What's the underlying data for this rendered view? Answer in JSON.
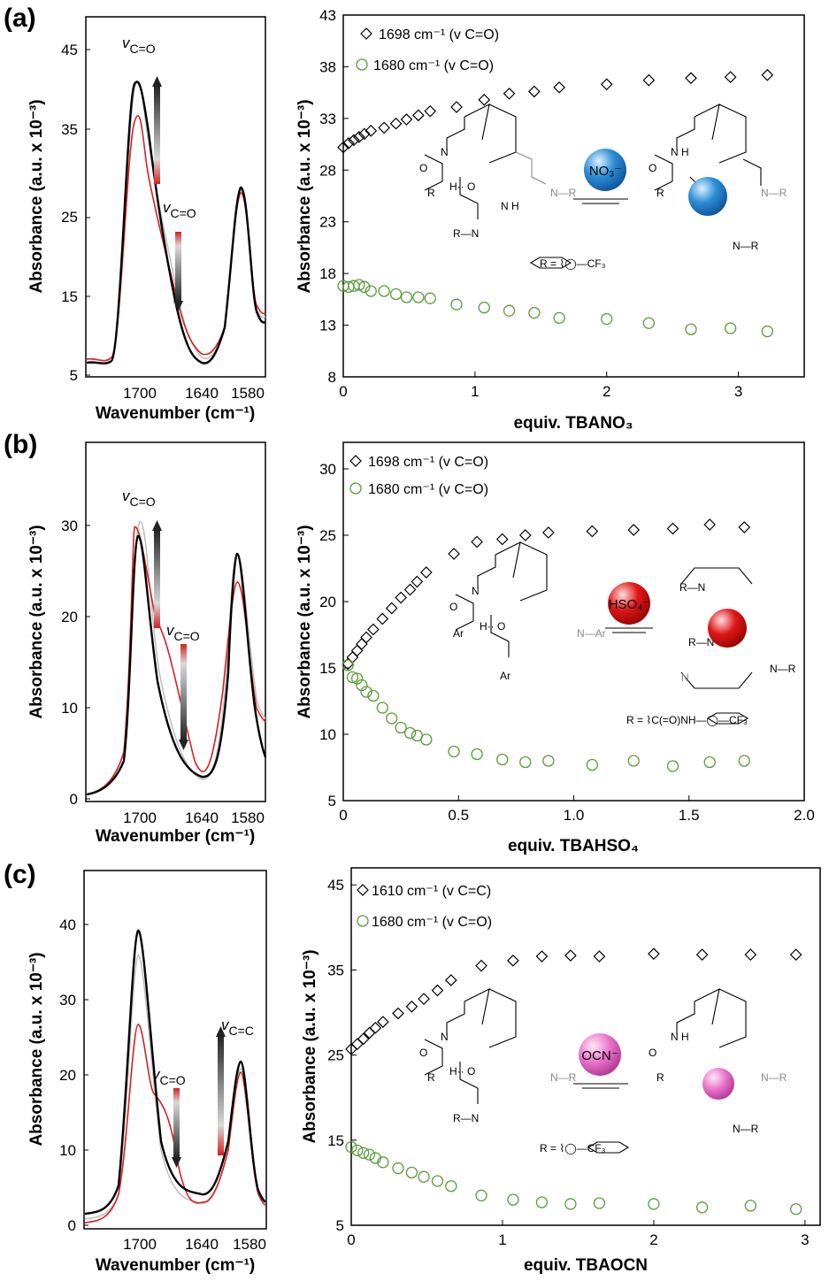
{
  "colors": {
    "diamond": "#000000",
    "circle": "#5a9a3a",
    "final_spectrum": "#000000",
    "initial_spectrum": "#d62020",
    "intermediate_spectra": "#b0b0b0",
    "no3_ion": "#2c8fd8",
    "hso4_ion": "#e01818",
    "ocn_ion": "#e870c8"
  },
  "panels": [
    {
      "label": "(a)",
      "ir": {
        "ylabel": "Absorbance (a.u. x 10⁻³)",
        "xlabel": "Wavenumber (cm⁻¹)",
        "yticks": [
          "5",
          "15",
          "25",
          "35",
          "45"
        ],
        "xticks": [
          "1700",
          "1640",
          "1580"
        ],
        "annotations": [
          {
            "nu": "v",
            "sub": "C=O"
          },
          {
            "nu": "v",
            "sub": "C=O"
          }
        ]
      },
      "scheme": {
        "ion": "NO₃⁻",
        "r_group": "R = ⌇◯—CF₃"
      }
    },
    {
      "label": "(b)",
      "ir": {
        "ylabel": "Absorbance (a.u. x 10⁻³)",
        "xlabel": "Wavenumber (cm⁻¹)",
        "yticks": [
          "0",
          "10",
          "20",
          "30"
        ],
        "xticks": [
          "1700",
          "1640",
          "1580"
        ],
        "annotations": [
          {
            "nu": "v",
            "sub": "C=O"
          },
          {
            "nu": "v",
            "sub": "C=O"
          }
        ]
      },
      "scheme": {
        "ion": "HSO₄⁻",
        "r_group": "R = ⌇C(=O)NH—◯—CF₃"
      }
    },
    {
      "label": "(c)",
      "ir": {
        "ylabel": "Absorbance (a.u. x 10⁻³)",
        "xlabel": "Wavenumber (cm⁻¹)",
        "yticks": [
          "0",
          "10",
          "20",
          "30",
          "40"
        ],
        "xticks": [
          "1700",
          "1640",
          "1580"
        ],
        "annotations": [
          {
            "nu": "v",
            "sub": "C=O"
          },
          {
            "nu": "v",
            "sub": "C=C"
          }
        ]
      },
      "scheme": {
        "ion": "OCN⁻",
        "r_group": "R = ⌇◯—CF₃"
      }
    }
  ],
  "chart_data": [
    {
      "type": "scatter",
      "panel": "(a)",
      "xlabel": "equiv. TBANO₃",
      "ylabel": "Absorbance (a.u. x 10⁻³)",
      "xlim": [
        0,
        3.5
      ],
      "ylim": [
        8,
        43
      ],
      "xticks": [
        0,
        1,
        2,
        3
      ],
      "yticks": [
        8,
        13,
        18,
        23,
        28,
        33,
        38,
        43
      ],
      "legend_position": "top-left",
      "grid": false,
      "series": [
        {
          "name": "1698 cm⁻¹ (v C=O)",
          "marker": "diamond",
          "x": [
            0,
            0.04,
            0.08,
            0.12,
            0.16,
            0.21,
            0.31,
            0.4,
            0.48,
            0.57,
            0.66,
            0.86,
            1.07,
            1.26,
            1.45,
            1.64,
            2.0,
            2.32,
            2.64,
            2.94,
            3.22
          ],
          "y": [
            30.2,
            30.6,
            30.9,
            31.2,
            31.5,
            31.8,
            32.1,
            32.5,
            32.9,
            33.3,
            33.7,
            34.1,
            34.8,
            35.4,
            35.6,
            36.0,
            36.3,
            36.7,
            36.9,
            37.0,
            37.2
          ]
        },
        {
          "name": "1680 cm⁻¹ (v C=O)",
          "marker": "circle",
          "x": [
            0,
            0.04,
            0.08,
            0.12,
            0.16,
            0.21,
            0.31,
            0.4,
            0.48,
            0.57,
            0.66,
            0.86,
            1.07,
            1.26,
            1.45,
            1.64,
            2.0,
            2.32,
            2.64,
            2.94,
            3.22
          ],
          "y": [
            16.8,
            16.7,
            16.8,
            16.9,
            16.7,
            16.3,
            16.3,
            16.0,
            15.7,
            15.7,
            15.6,
            15.0,
            14.7,
            14.4,
            14.2,
            13.7,
            13.6,
            13.2,
            12.6,
            12.7,
            12.4
          ]
        }
      ]
    },
    {
      "type": "scatter",
      "panel": "(b)",
      "xlabel": "equiv. TBAHSO₄",
      "ylabel": "Absorbance (a.u. x 10⁻³)",
      "xlim": [
        0,
        2.0
      ],
      "ylim": [
        5,
        32
      ],
      "xticks": [
        0,
        0.5,
        1.0,
        1.5,
        2.0
      ],
      "yticks": [
        5,
        10,
        15,
        20,
        25,
        30
      ],
      "legend_position": "top-left",
      "grid": false,
      "series": [
        {
          "name": "1698 cm⁻¹ (v C=O)",
          "marker": "diamond",
          "x": [
            0.02,
            0.04,
            0.06,
            0.08,
            0.1,
            0.13,
            0.17,
            0.21,
            0.25,
            0.29,
            0.32,
            0.36,
            0.48,
            0.58,
            0.69,
            0.79,
            0.89,
            1.08,
            1.26,
            1.43,
            1.59,
            1.74
          ],
          "y": [
            15.3,
            15.8,
            16.3,
            16.8,
            17.3,
            17.9,
            18.7,
            19.5,
            20.3,
            20.9,
            21.5,
            22.2,
            23.6,
            24.5,
            24.7,
            25.0,
            25.2,
            25.3,
            25.4,
            25.5,
            25.8,
            25.6
          ]
        },
        {
          "name": "1680 cm⁻¹ (v C=O)",
          "marker": "circle",
          "x": [
            0.02,
            0.04,
            0.06,
            0.08,
            0.1,
            0.13,
            0.17,
            0.21,
            0.25,
            0.29,
            0.32,
            0.36,
            0.48,
            0.58,
            0.69,
            0.79,
            0.89,
            1.08,
            1.26,
            1.43,
            1.59,
            1.74
          ],
          "y": [
            15.2,
            14.3,
            14.2,
            13.7,
            13.2,
            12.9,
            12.0,
            11.2,
            10.5,
            10.1,
            9.9,
            9.6,
            8.7,
            8.5,
            8.1,
            7.9,
            8.0,
            7.7,
            8.0,
            7.6,
            7.9,
            8.0
          ]
        }
      ]
    },
    {
      "type": "scatter",
      "panel": "(c)",
      "xlabel": "equiv. TBAOCN",
      "ylabel": "Absorbance (a.u. x 10⁻³)",
      "xlim": [
        0,
        3.1
      ],
      "ylim": [
        5,
        47
      ],
      "xticks": [
        0,
        1,
        2,
        3
      ],
      "yticks": [
        5,
        15,
        25,
        35,
        45
      ],
      "legend_position": "top-left",
      "grid": false,
      "series": [
        {
          "name": "1610 cm⁻¹ (v C=C)",
          "marker": "diamond",
          "x": [
            0,
            0.04,
            0.08,
            0.12,
            0.16,
            0.21,
            0.31,
            0.4,
            0.48,
            0.57,
            0.66,
            0.86,
            1.07,
            1.26,
            1.45,
            1.64,
            2.0,
            2.32,
            2.64,
            2.94
          ],
          "y": [
            25.7,
            26.3,
            26.9,
            27.6,
            28.2,
            28.9,
            29.9,
            30.7,
            31.6,
            32.6,
            33.8,
            35.5,
            36.1,
            36.6,
            36.7,
            36.6,
            36.9,
            36.8,
            36.8,
            36.8
          ]
        },
        {
          "name": "1680 cm⁻¹ (v C=O)",
          "marker": "circle",
          "x": [
            0,
            0.04,
            0.08,
            0.12,
            0.16,
            0.21,
            0.31,
            0.4,
            0.48,
            0.57,
            0.66,
            0.86,
            1.07,
            1.26,
            1.45,
            1.64,
            2.0,
            2.32,
            2.64,
            2.94
          ],
          "y": [
            14.2,
            13.8,
            13.5,
            13.3,
            12.9,
            12.4,
            11.7,
            11.2,
            10.7,
            10.2,
            9.6,
            8.5,
            8.0,
            7.7,
            7.5,
            7.6,
            7.5,
            7.1,
            7.3,
            6.9
          ]
        }
      ]
    }
  ]
}
